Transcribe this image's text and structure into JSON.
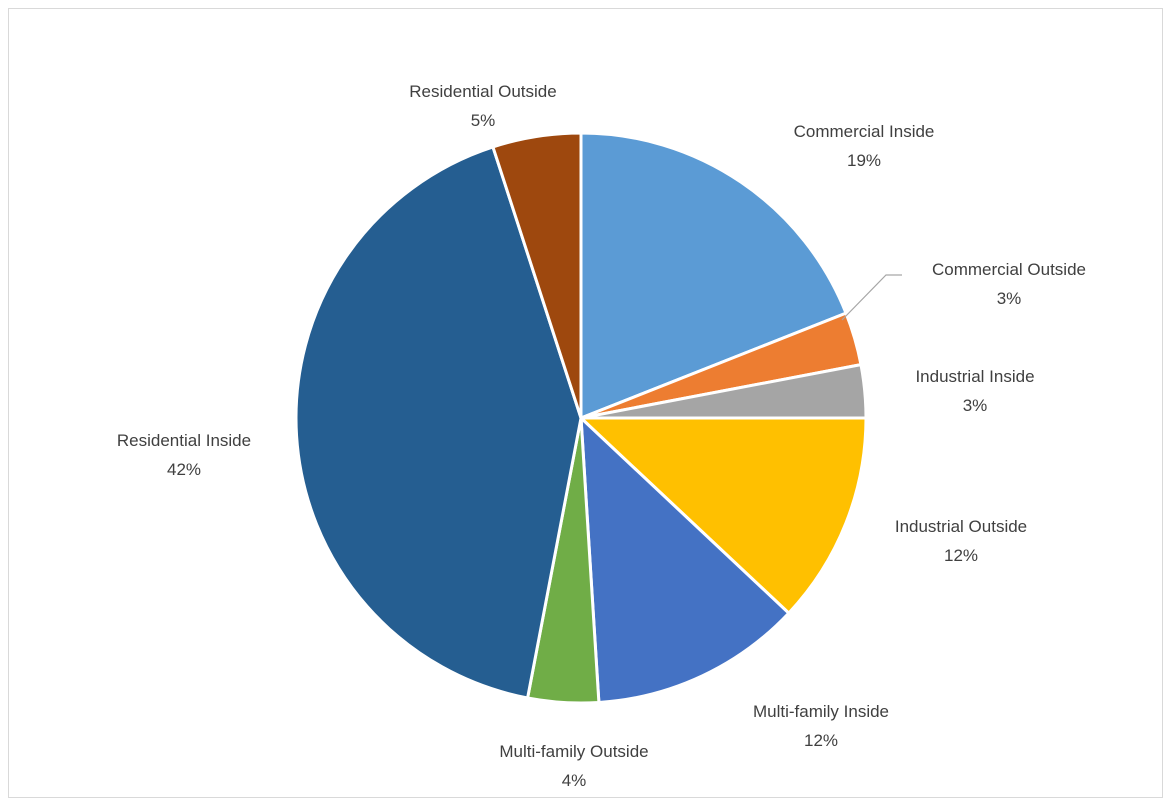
{
  "chart_data": {
    "type": "pie",
    "title": "",
    "legend": "none",
    "slices": [
      {
        "name": "Commercial Inside",
        "value": 19,
        "label": "19%",
        "color": "#5b9bd5"
      },
      {
        "name": "Commercial Outside",
        "value": 3,
        "label": "3%",
        "color": "#ed7d31"
      },
      {
        "name": "Industrial Inside",
        "value": 3,
        "label": "3%",
        "color": "#a5a5a5"
      },
      {
        "name": "Industrial Outside",
        "value": 12,
        "label": "12%",
        "color": "#ffc000"
      },
      {
        "name": "Multi-family Inside",
        "value": 12,
        "label": "12%",
        "color": "#4472c4"
      },
      {
        "name": "Multi-family Outside",
        "value": 4,
        "label": "4%",
        "color": "#70ad47"
      },
      {
        "name": "Residential Inside",
        "value": 42,
        "label": "42%",
        "color": "#255e91"
      },
      {
        "name": "Residential Outside",
        "value": 5,
        "label": "5%",
        "color": "#9e480e"
      }
    ]
  }
}
